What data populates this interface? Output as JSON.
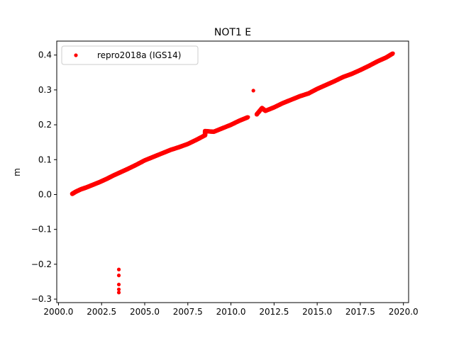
{
  "chart_data": {
    "type": "scatter",
    "title": "NOT1 E",
    "xlabel": "",
    "ylabel": "m",
    "xlim": [
      1999.9,
      2020.3
    ],
    "ylim": [
      -0.31,
      0.44
    ],
    "xticks": [
      2000.0,
      2002.5,
      2005.0,
      2007.5,
      2010.0,
      2012.5,
      2015.0,
      2017.5,
      2020.0
    ],
    "xtick_labels": [
      "2000.0",
      "2002.5",
      "2005.0",
      "2007.5",
      "2010.0",
      "2012.5",
      "2015.0",
      "2017.5",
      "2020.0"
    ],
    "yticks": [
      -0.3,
      -0.2,
      -0.1,
      0.0,
      0.1,
      0.2,
      0.3,
      0.4
    ],
    "ytick_labels": [
      "−0.3",
      "−0.2",
      "−0.1",
      "0.0",
      "0.1",
      "0.2",
      "0.3",
      "0.4"
    ],
    "grid": false,
    "legend_position": "top-left",
    "series": [
      {
        "name": "repro2018a (IGS14)",
        "color": "#ff0000",
        "marker": "circle",
        "points": [
          [
            2000.8,
            0.002
          ],
          [
            2001.0,
            0.008
          ],
          [
            2001.3,
            0.015
          ],
          [
            2001.6,
            0.02
          ],
          [
            2002.0,
            0.028
          ],
          [
            2002.4,
            0.036
          ],
          [
            2002.8,
            0.045
          ],
          [
            2003.2,
            0.055
          ],
          [
            2003.6,
            0.064
          ],
          [
            2004.0,
            0.073
          ],
          [
            2004.5,
            0.085
          ],
          [
            2005.0,
            0.098
          ],
          [
            2005.5,
            0.108
          ],
          [
            2006.0,
            0.118
          ],
          [
            2006.5,
            0.128
          ],
          [
            2007.0,
            0.136
          ],
          [
            2007.5,
            0.145
          ],
          [
            2008.0,
            0.157
          ],
          [
            2008.5,
            0.17
          ],
          [
            2009.0,
            0.18
          ],
          [
            2009.5,
            0.19
          ],
          [
            2010.0,
            0.2
          ],
          [
            2010.5,
            0.212
          ],
          [
            2011.0,
            0.222
          ],
          [
            2011.5,
            0.23
          ],
          [
            2012.0,
            0.24
          ],
          [
            2012.5,
            0.25
          ],
          [
            2013.0,
            0.262
          ],
          [
            2013.5,
            0.272
          ],
          [
            2014.0,
            0.282
          ],
          [
            2014.5,
            0.29
          ],
          [
            2015.0,
            0.303
          ],
          [
            2015.5,
            0.314
          ],
          [
            2016.0,
            0.325
          ],
          [
            2016.5,
            0.337
          ],
          [
            2017.0,
            0.346
          ],
          [
            2017.5,
            0.357
          ],
          [
            2018.0,
            0.369
          ],
          [
            2018.5,
            0.382
          ],
          [
            2019.0,
            0.393
          ],
          [
            2019.4,
            0.405
          ],
          [
            2008.5,
            0.182
          ],
          [
            2011.3,
            0.298
          ],
          [
            2011.8,
            0.248
          ],
          [
            2003.5,
            -0.215
          ],
          [
            2003.5,
            -0.232
          ],
          [
            2003.5,
            -0.258
          ],
          [
            2003.5,
            -0.272
          ],
          [
            2003.5,
            -0.281
          ]
        ]
      }
    ]
  }
}
